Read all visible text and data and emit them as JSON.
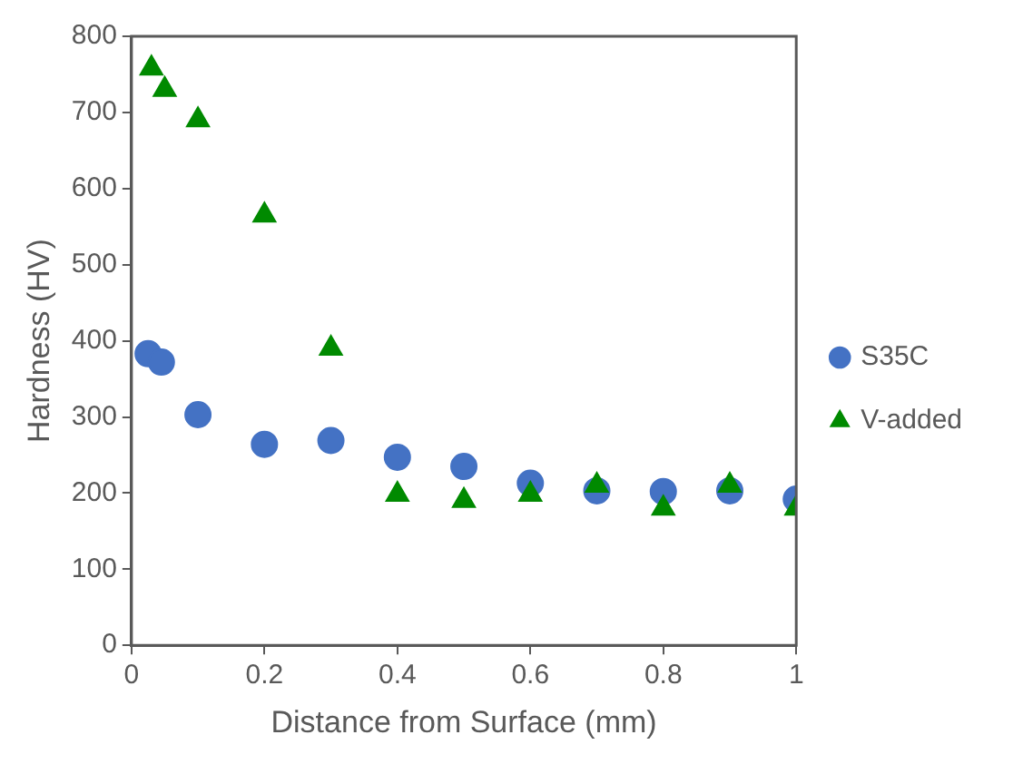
{
  "chart_data": {
    "type": "scatter",
    "xlabel": "Distance from Surface (mm)",
    "ylabel": "Hardness (HV)",
    "xlim": [
      0,
      1
    ],
    "xticks": [
      0,
      0.2,
      0.4,
      0.6,
      0.8,
      1
    ],
    "ylim": [
      0,
      800
    ],
    "yticks": [
      0,
      100,
      200,
      300,
      400,
      500,
      600,
      700,
      800
    ],
    "grid": false,
    "legend": "right",
    "series": [
      {
        "name": "S35C",
        "color": "#4472c4",
        "marker": "circle",
        "x": [
          0.025,
          0.045,
          0.1,
          0.2,
          0.3,
          0.4,
          0.5,
          0.6,
          0.7,
          0.8,
          0.9,
          1.0
        ],
        "values": [
          383,
          372,
          303,
          264,
          269,
          247,
          235,
          213,
          203,
          202,
          203,
          192
        ]
      },
      {
        "name": "V-added",
        "color": "#008a00",
        "marker": "triangle",
        "x": [
          0.03,
          0.05,
          0.1,
          0.2,
          0.3,
          0.4,
          0.5,
          0.6,
          0.7,
          0.8,
          0.9,
          1.0
        ],
        "values": [
          758,
          730,
          690,
          565,
          390,
          198,
          190,
          198,
          210,
          180,
          210,
          180
        ]
      }
    ]
  }
}
